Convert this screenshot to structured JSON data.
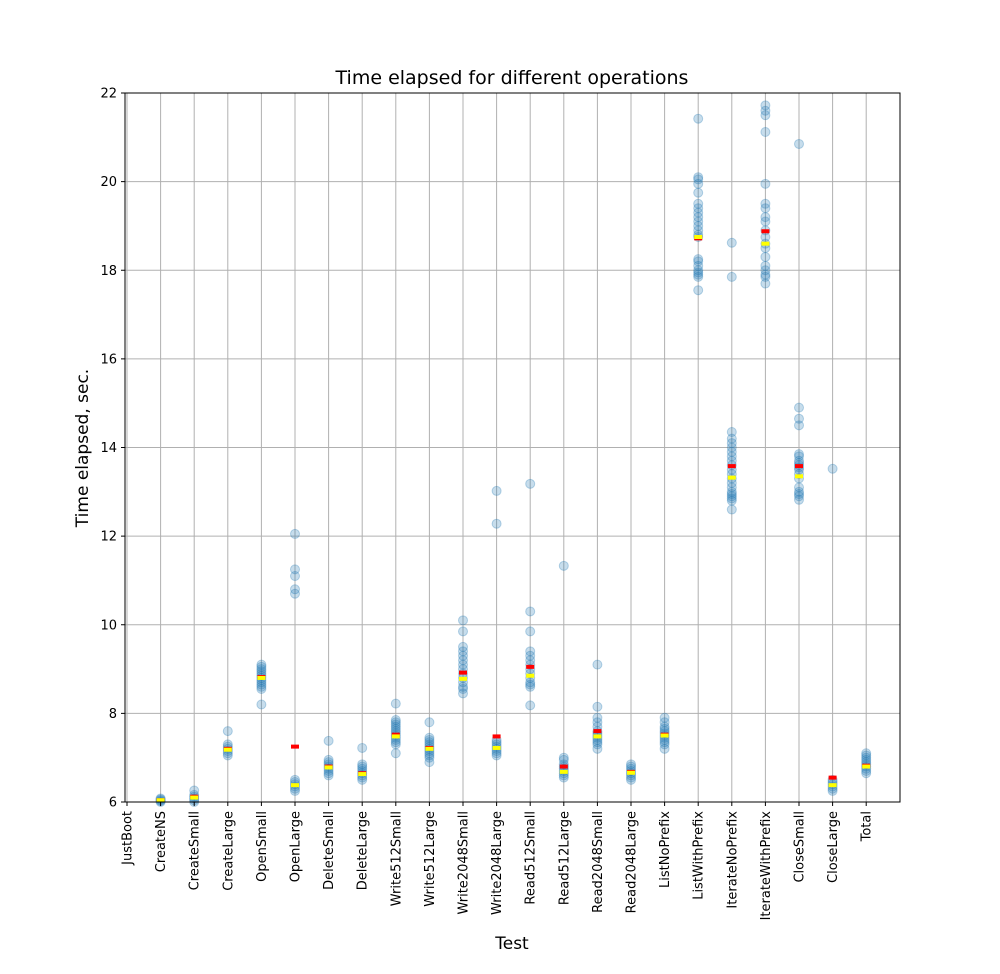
{
  "chart_data": {
    "type": "scatter",
    "title": "Time elapsed for different operations",
    "xlabel": "Test",
    "ylabel": "Time elapsed, sec.",
    "ylim": [
      6,
      22
    ],
    "yticks": [
      6,
      8,
      10,
      12,
      14,
      16,
      18,
      20,
      22
    ],
    "grid": true,
    "categories": [
      "JustBoot",
      "CreateNS",
      "CreateSmall",
      "CreateLarge",
      "OpenSmall",
      "OpenLarge",
      "DeleteSmall",
      "DeleteLarge",
      "Write512Small",
      "Write512Large",
      "Write2048Small",
      "Write2048Large",
      "Read512Small",
      "Read512Large",
      "Read2048Small",
      "Read2048Large",
      "ListNoPrefix",
      "ListWithPrefix",
      "IterateNoPrefix",
      "IterateWithPrefix",
      "CloseSmall",
      "CloseLarge",
      "Total"
    ],
    "colors": {
      "points": "#1f77b4",
      "mean": "#ff0000",
      "median": "#ffff00",
      "grid": "#b0b0b0"
    },
    "series": [
      {
        "category": "JustBoot",
        "points": [],
        "mean": null,
        "median": null
      },
      {
        "category": "CreateNS",
        "points": [
          6.0,
          6.02,
          6.04,
          6.06,
          6.08
        ],
        "mean": 6.04,
        "median": 6.04
      },
      {
        "category": "CreateSmall",
        "points": [
          6.0,
          6.04,
          6.08,
          6.12,
          6.16,
          6.26
        ],
        "mean": 6.12,
        "median": 6.1
      },
      {
        "category": "CreateLarge",
        "points": [
          7.05,
          7.1,
          7.15,
          7.2,
          7.25,
          7.3,
          7.6
        ],
        "mean": 7.2,
        "median": 7.18
      },
      {
        "category": "OpenSmall",
        "points": [
          8.2,
          8.55,
          8.6,
          8.65,
          8.7,
          8.75,
          8.8,
          8.85,
          8.9,
          8.95,
          9.0,
          9.05,
          9.1
        ],
        "mean": 8.82,
        "median": 8.8
      },
      {
        "category": "OpenLarge",
        "points": [
          6.25,
          6.3,
          6.35,
          6.4,
          6.45,
          6.5,
          10.7,
          10.8,
          11.1,
          11.25,
          12.05
        ],
        "mean": 7.25,
        "median": 6.38
      },
      {
        "category": "DeleteSmall",
        "points": [
          6.6,
          6.65,
          6.7,
          6.75,
          6.8,
          6.85,
          6.9,
          6.95,
          7.38
        ],
        "mean": 6.8,
        "median": 6.78
      },
      {
        "category": "DeleteLarge",
        "points": [
          6.5,
          6.55,
          6.6,
          6.65,
          6.7,
          6.75,
          6.8,
          6.85,
          7.22
        ],
        "mean": 6.65,
        "median": 6.63
      },
      {
        "category": "Write512Small",
        "points": [
          7.1,
          7.3,
          7.35,
          7.4,
          7.45,
          7.5,
          7.55,
          7.6,
          7.65,
          7.7,
          7.75,
          7.8,
          7.85,
          8.22
        ],
        "mean": 7.52,
        "median": 7.48
      },
      {
        "category": "Write512Large",
        "points": [
          6.9,
          7.0,
          7.05,
          7.1,
          7.15,
          7.2,
          7.25,
          7.3,
          7.35,
          7.4,
          7.45,
          7.8
        ],
        "mean": 7.22,
        "median": 7.2
      },
      {
        "category": "Write2048Small",
        "points": [
          8.45,
          8.55,
          8.6,
          8.7,
          8.8,
          8.9,
          9.0,
          9.1,
          9.2,
          9.3,
          9.4,
          9.5,
          9.85,
          10.1
        ],
        "mean": 8.92,
        "median": 8.78
      },
      {
        "category": "Write2048Large",
        "points": [
          7.05,
          7.1,
          7.15,
          7.2,
          7.25,
          7.3,
          7.35,
          7.4,
          12.28,
          13.02
        ],
        "mean": 7.48,
        "median": 7.22
      },
      {
        "category": "Read512Small",
        "points": [
          8.18,
          8.6,
          8.65,
          8.7,
          8.8,
          8.9,
          9.0,
          9.1,
          9.2,
          9.3,
          9.4,
          9.85,
          10.3,
          13.18
        ],
        "mean": 9.05,
        "median": 8.85
      },
      {
        "category": "Read512Large",
        "points": [
          6.55,
          6.6,
          6.65,
          6.7,
          6.75,
          6.8,
          6.85,
          6.95,
          7.0,
          11.33
        ],
        "mean": 6.8,
        "median": 6.68
      },
      {
        "category": "Read2048Small",
        "points": [
          7.2,
          7.3,
          7.35,
          7.4,
          7.45,
          7.5,
          7.55,
          7.6,
          7.7,
          7.8,
          7.9,
          8.15,
          9.1
        ],
        "mean": 7.6,
        "median": 7.48
      },
      {
        "category": "Read2048Large",
        "points": [
          6.5,
          6.55,
          6.6,
          6.65,
          6.7,
          6.75,
          6.8,
          6.85
        ],
        "mean": 6.68,
        "median": 6.66
      },
      {
        "category": "ListNoPrefix",
        "points": [
          7.2,
          7.3,
          7.35,
          7.4,
          7.45,
          7.5,
          7.55,
          7.6,
          7.65,
          7.7,
          7.8,
          7.9
        ],
        "mean": 7.52,
        "median": 7.5
      },
      {
        "category": "ListWithPrefix",
        "points": [
          17.55,
          17.85,
          17.9,
          17.95,
          18.0,
          18.1,
          18.2,
          18.25,
          18.75,
          18.8,
          18.9,
          19.0,
          19.1,
          19.2,
          19.3,
          19.4,
          19.5,
          19.75,
          19.95,
          20.05,
          20.1,
          21.42
        ],
        "mean": 18.72,
        "median": 18.75
      },
      {
        "category": "IterateNoPrefix",
        "points": [
          12.6,
          12.8,
          12.85,
          12.9,
          12.95,
          13.0,
          13.1,
          13.2,
          13.3,
          13.4,
          13.5,
          13.6,
          13.7,
          13.8,
          13.9,
          14.0,
          14.1,
          14.2,
          14.35,
          17.85,
          18.62
        ],
        "mean": 13.58,
        "median": 13.32
      },
      {
        "category": "IterateWithPrefix",
        "points": [
          17.7,
          17.85,
          17.9,
          18.0,
          18.1,
          18.3,
          18.5,
          18.6,
          18.75,
          18.9,
          19.1,
          19.2,
          19.4,
          19.5,
          19.95,
          21.12,
          21.5,
          21.6,
          21.72
        ],
        "mean": 18.88,
        "median": 18.6
      },
      {
        "category": "CloseSmall",
        "points": [
          12.82,
          12.9,
          12.95,
          13.0,
          13.1,
          13.3,
          13.4,
          13.5,
          13.55,
          13.6,
          13.65,
          13.7,
          13.8,
          13.85,
          14.5,
          14.65,
          14.9,
          20.85
        ],
        "mean": 13.58,
        "median": 13.35
      },
      {
        "category": "CloseLarge",
        "points": [
          6.25,
          6.3,
          6.35,
          6.4,
          6.45,
          6.5,
          13.52
        ],
        "mean": 6.55,
        "median": 6.38
      },
      {
        "category": "Total",
        "points": [
          6.65,
          6.7,
          6.75,
          6.8,
          6.85,
          6.9,
          6.95,
          7.0,
          7.05,
          7.1
        ],
        "mean": 6.82,
        "median": 6.8
      }
    ]
  }
}
